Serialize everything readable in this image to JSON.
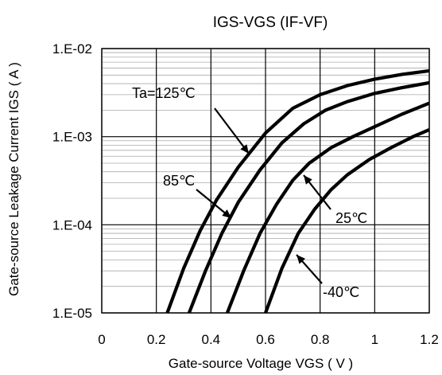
{
  "chart_data": {
    "type": "line",
    "title": "IGS-VGS (IF-VF)",
    "xlabel": "Gate-source Voltage  VGS ( V )",
    "ylabel": "Gate-source Leakage Current  IGS ( A )",
    "xlim": [
      0,
      1.2
    ],
    "ylim": [
      1e-05,
      0.01
    ],
    "yscale": "log",
    "grid": true,
    "x_ticks": [
      "0",
      "0.2",
      "0.4",
      "0.6",
      "0.8",
      "1",
      "1.2"
    ],
    "y_ticks": [
      "1.E-05",
      "1.E-04",
      "1.E-03",
      "1.E-02"
    ],
    "series": [
      {
        "name": "Ta=125℃",
        "x": [
          0.24,
          0.3,
          0.36,
          0.42,
          0.5,
          0.6,
          0.7,
          0.8,
          0.9,
          1.0,
          1.1,
          1.2
        ],
        "y": [
          1e-05,
          3.2e-05,
          8.5e-05,
          0.00019,
          0.00045,
          0.0011,
          0.0021,
          0.003,
          0.0038,
          0.0045,
          0.0051,
          0.0056
        ]
      },
      {
        "name": "85℃",
        "x": [
          0.32,
          0.38,
          0.44,
          0.5,
          0.58,
          0.66,
          0.74,
          0.82,
          0.9,
          1.0,
          1.1,
          1.2
        ],
        "y": [
          1e-05,
          3e-05,
          8e-05,
          0.00018,
          0.00042,
          0.00085,
          0.0014,
          0.002,
          0.0025,
          0.0031,
          0.0036,
          0.0041
        ]
      },
      {
        "name": "25℃",
        "x": [
          0.46,
          0.52,
          0.58,
          0.64,
          0.7,
          0.76,
          0.84,
          0.92,
          1.0,
          1.1,
          1.2
        ],
        "y": [
          1e-05,
          3e-05,
          8e-05,
          0.00017,
          0.00032,
          0.0005,
          0.00075,
          0.001,
          0.0013,
          0.0018,
          0.0024
        ]
      },
      {
        "name": "-40℃",
        "x": [
          0.6,
          0.66,
          0.72,
          0.78,
          0.84,
          0.9,
          0.98,
          1.06,
          1.14,
          1.2
        ],
        "y": [
          1e-05,
          3.2e-05,
          8e-05,
          0.00015,
          0.00025,
          0.00037,
          0.00055,
          0.00075,
          0.001,
          0.0012
        ]
      }
    ],
    "labels": [
      {
        "text": "Ta=125℃",
        "series": 0
      },
      {
        "text": "85℃",
        "series": 1
      },
      {
        "text": "25℃",
        "series": 2
      },
      {
        "text": "-40℃",
        "series": 3
      }
    ]
  }
}
